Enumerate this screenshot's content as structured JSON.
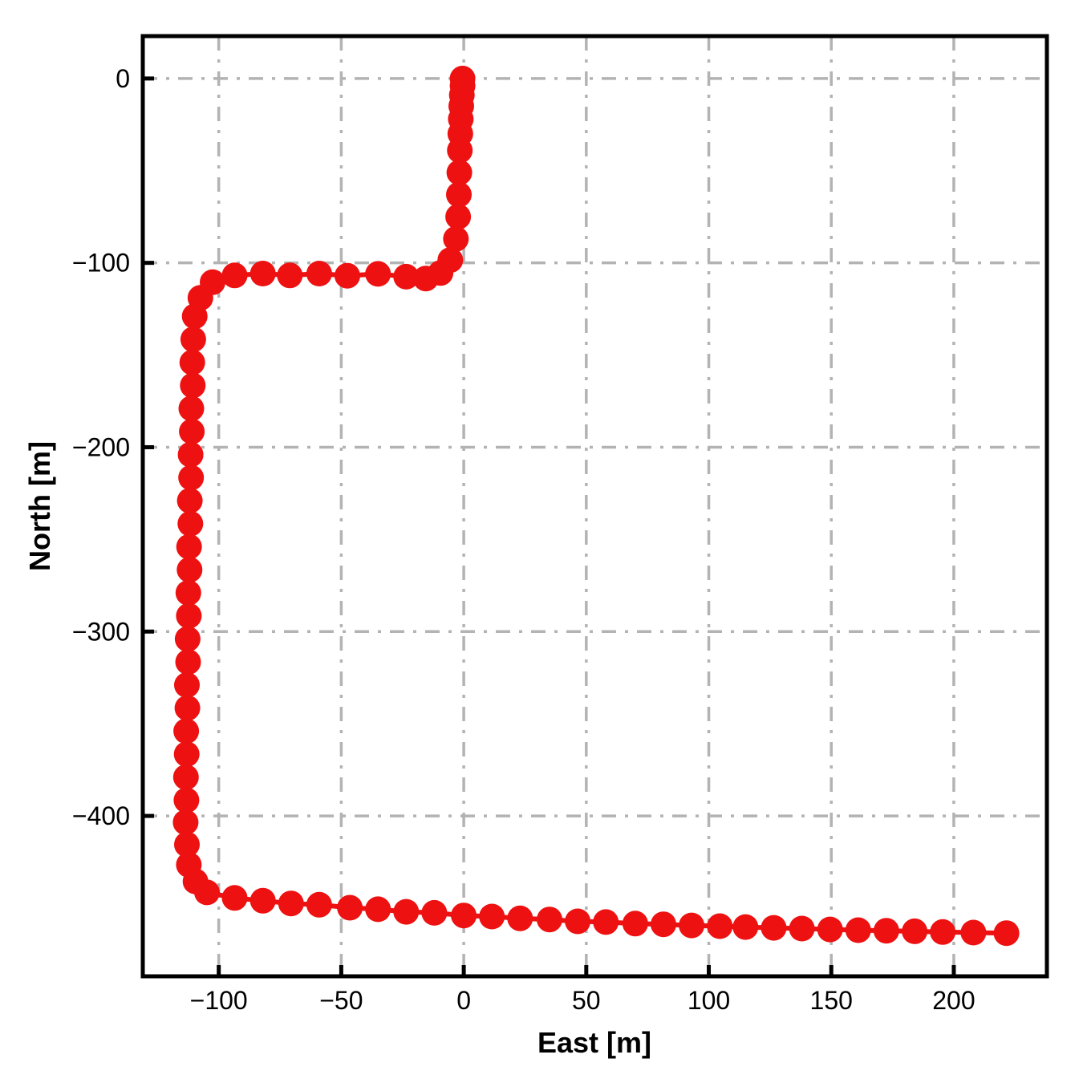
{
  "chart_data": {
    "type": "line",
    "title": "",
    "xlabel": "East [m]",
    "ylabel": "North [m]",
    "xlim": [
      -131,
      238
    ],
    "ylim": [
      -487,
      23
    ],
    "x_ticks": [
      -100,
      -50,
      0,
      50,
      100,
      150,
      200
    ],
    "y_ticks": [
      0,
      -100,
      -200,
      -300,
      -400
    ],
    "grid": "on",
    "grid_style": "dash-dot",
    "grid_color": "#b3b3b3",
    "legend": "none",
    "plot_background": "#ffffff",
    "spine_color": "#000000",
    "line_color": "#ee1111",
    "marker": "circle",
    "series": [
      {
        "name": "trajectory",
        "points": [
          [
            -0.5,
            0
          ],
          [
            -0.5,
            -4
          ],
          [
            -0.8,
            -9
          ],
          [
            -1.0,
            -15
          ],
          [
            -1.2,
            -22
          ],
          [
            -1.4,
            -30
          ],
          [
            -1.6,
            -39
          ],
          [
            -1.8,
            -51
          ],
          [
            -2.0,
            -63
          ],
          [
            -2.3,
            -75
          ],
          [
            -3.2,
            -87
          ],
          [
            -5.5,
            -98.5
          ],
          [
            -9.5,
            -105.5
          ],
          [
            -15.5,
            -108.5
          ],
          [
            -23.5,
            -107.5
          ],
          [
            -35,
            -106
          ],
          [
            -47.5,
            -107
          ],
          [
            -59,
            -105.8
          ],
          [
            -71,
            -106.8
          ],
          [
            -82,
            -105.8
          ],
          [
            -93.5,
            -106.8
          ],
          [
            -102.5,
            -110.5
          ],
          [
            -107.5,
            -119
          ],
          [
            -109.8,
            -129
          ],
          [
            -110.4,
            -141.5
          ],
          [
            -110.8,
            -154
          ],
          [
            -110.6,
            -166.5
          ],
          [
            -111.2,
            -179
          ],
          [
            -111.0,
            -191.5
          ],
          [
            -111.5,
            -204
          ],
          [
            -111.3,
            -216.5
          ],
          [
            -111.8,
            -229
          ],
          [
            -111.6,
            -241.5
          ],
          [
            -112.1,
            -254
          ],
          [
            -111.9,
            -266.5
          ],
          [
            -112.4,
            -279
          ],
          [
            -112.2,
            -291.5
          ],
          [
            -112.7,
            -304
          ],
          [
            -112.5,
            -316.5
          ],
          [
            -113.0,
            -329
          ],
          [
            -112.8,
            -341.5
          ],
          [
            -113.3,
            -354
          ],
          [
            -113.1,
            -366.5
          ],
          [
            -113.4,
            -379
          ],
          [
            -113.2,
            -391.5
          ],
          [
            -113.5,
            -403.5
          ],
          [
            -113.0,
            -415.5
          ],
          [
            -112.2,
            -426.5
          ],
          [
            -109.5,
            -435.5
          ],
          [
            -104.8,
            -441.5
          ],
          [
            -93.5,
            -444.5
          ],
          [
            -82,
            -446
          ],
          [
            -70.5,
            -447.5
          ],
          [
            -59,
            -448.2
          ],
          [
            -46.5,
            -449.8
          ],
          [
            -35,
            -450.6
          ],
          [
            -23.5,
            -452
          ],
          [
            -12,
            -452.6
          ],
          [
            0,
            -454
          ],
          [
            11.5,
            -454.6
          ],
          [
            23,
            -455.6
          ],
          [
            35,
            -456.2
          ],
          [
            46.5,
            -457.2
          ],
          [
            58,
            -457.6
          ],
          [
            70,
            -458.4
          ],
          [
            81.5,
            -458.8
          ],
          [
            93,
            -459.4
          ],
          [
            104.5,
            -459.8
          ],
          [
            115,
            -460.3
          ],
          [
            126.5,
            -460.7
          ],
          [
            138,
            -461.1
          ],
          [
            149.5,
            -461.6
          ],
          [
            161,
            -462.0
          ],
          [
            172.5,
            -462.3
          ],
          [
            184,
            -462.6
          ],
          [
            195.5,
            -463.0
          ],
          [
            208,
            -463.3
          ],
          [
            221.5,
            -463.6
          ]
        ]
      }
    ]
  }
}
